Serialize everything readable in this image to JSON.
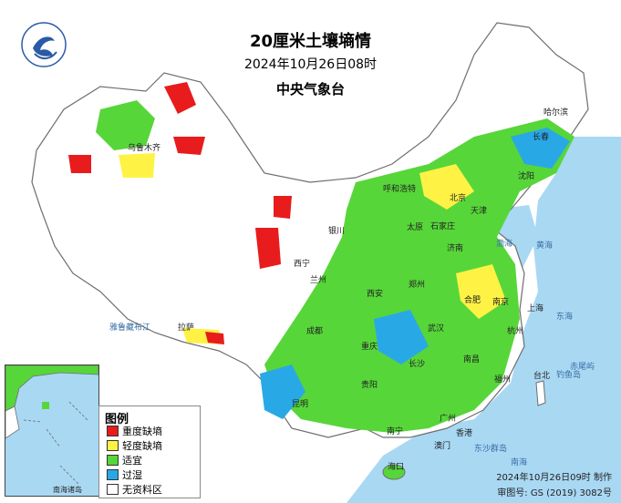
{
  "header": {
    "title": "20厘米土壤墒情",
    "datetime": "2024年10月26日08时",
    "agency": "中央气象台"
  },
  "legend": {
    "title": "图例",
    "items": [
      {
        "label": "重度缺墒",
        "color": "#e81c1c"
      },
      {
        "label": "轻度缺墒",
        "color": "#fef244"
      },
      {
        "label": "适宜",
        "color": "#57d63a"
      },
      {
        "label": "过湿",
        "color": "#29a8e6"
      },
      {
        "label": "无资料区",
        "color": "#ffffff"
      }
    ]
  },
  "footer": {
    "made": "2024年10月26日09时 制作",
    "review": "审图号: GS (2019) 3082号"
  },
  "inset": {
    "label": "南海诸岛"
  },
  "cities": [
    "哈尔滨",
    "长春",
    "沈阳",
    "呼和浩特",
    "北京",
    "天津",
    "石家庄",
    "太原",
    "济南",
    "银川",
    "兰州",
    "西宁",
    "乌鲁木齐",
    "郑州",
    "西安",
    "合肥",
    "南京",
    "上海",
    "杭州",
    "武汉",
    "成都",
    "重庆",
    "长沙",
    "南昌",
    "福州",
    "贵阳",
    "昆明",
    "南宁",
    "广州",
    "香港",
    "澳门",
    "海口",
    "拉萨",
    "台北"
  ],
  "seas": [
    "渤海",
    "黄海",
    "东海",
    "南海",
    "雅鲁藏布江",
    "赤尾屿",
    "钓鱼岛",
    "东沙群岛"
  ],
  "colors": {
    "land_none": "#ffffff",
    "border": "#6e6e6e",
    "sea": "#a9d8f3"
  },
  "icons": {
    "logo": "cma-logo-icon",
    "city_marker": "city-dot-icon"
  }
}
